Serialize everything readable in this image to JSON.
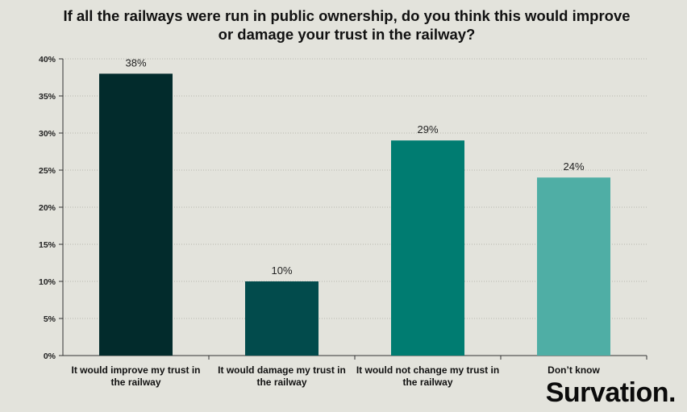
{
  "chart_data": {
    "type": "bar",
    "title": "If all the railways were run in public ownership, do you think this would improve\nor damage your trust in the railway?",
    "categories": [
      "It would improve my trust in the railway",
      "It would damage my trust in the railway",
      "It would not change my trust in the railway",
      "Don’t know"
    ],
    "values": [
      38,
      10,
      29,
      24
    ],
    "data_labels": [
      "38%",
      "10%",
      "29%",
      "24%"
    ],
    "colors": [
      "#022b2c",
      "#024b4c",
      "#007c71",
      "#4faea5"
    ],
    "ylim": [
      0,
      40
    ],
    "yticks": [
      "0%",
      "5%",
      "10%",
      "15%",
      "20%",
      "25%",
      "30%",
      "35%",
      "40%"
    ],
    "grid": true,
    "legend": "none"
  },
  "branding": {
    "logo_text": "Survation",
    "logo_dot": "."
  }
}
